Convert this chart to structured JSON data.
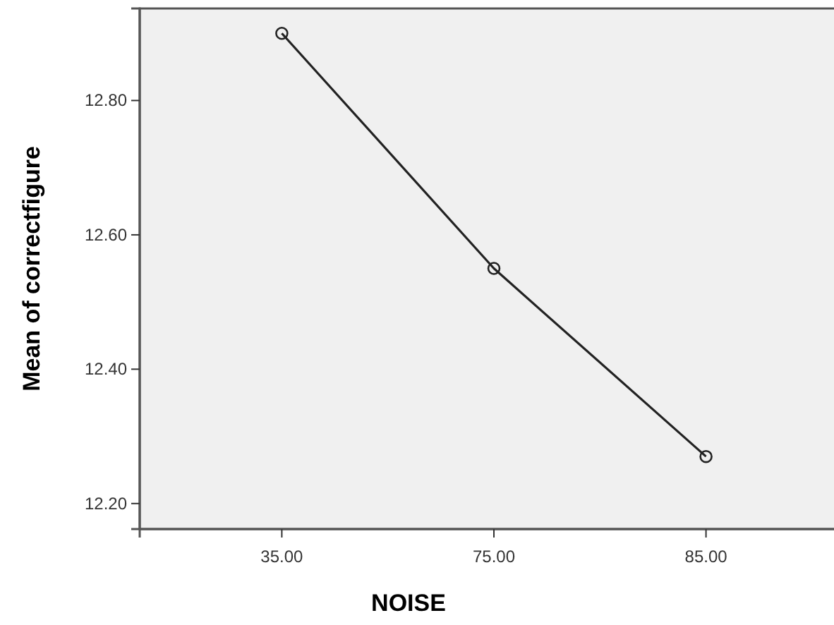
{
  "chart_data": {
    "type": "line",
    "xlabel": "NOISE",
    "ylabel": "Mean of correctfigure",
    "categories": [
      "35.00",
      "75.00",
      "85.00"
    ],
    "series": [
      {
        "color": "#222222",
        "values": [
          12.9,
          12.55,
          12.27
        ]
      }
    ],
    "ylim": [
      12.162,
      12.937
    ],
    "yticks": [
      {
        "value": 12.2,
        "label": "12.20"
      },
      {
        "value": 12.4,
        "label": "12.40"
      },
      {
        "value": 12.6,
        "label": "12.60"
      },
      {
        "value": 12.8,
        "label": "12.80"
      }
    ],
    "marker": "circle",
    "line_style": "solid"
  }
}
